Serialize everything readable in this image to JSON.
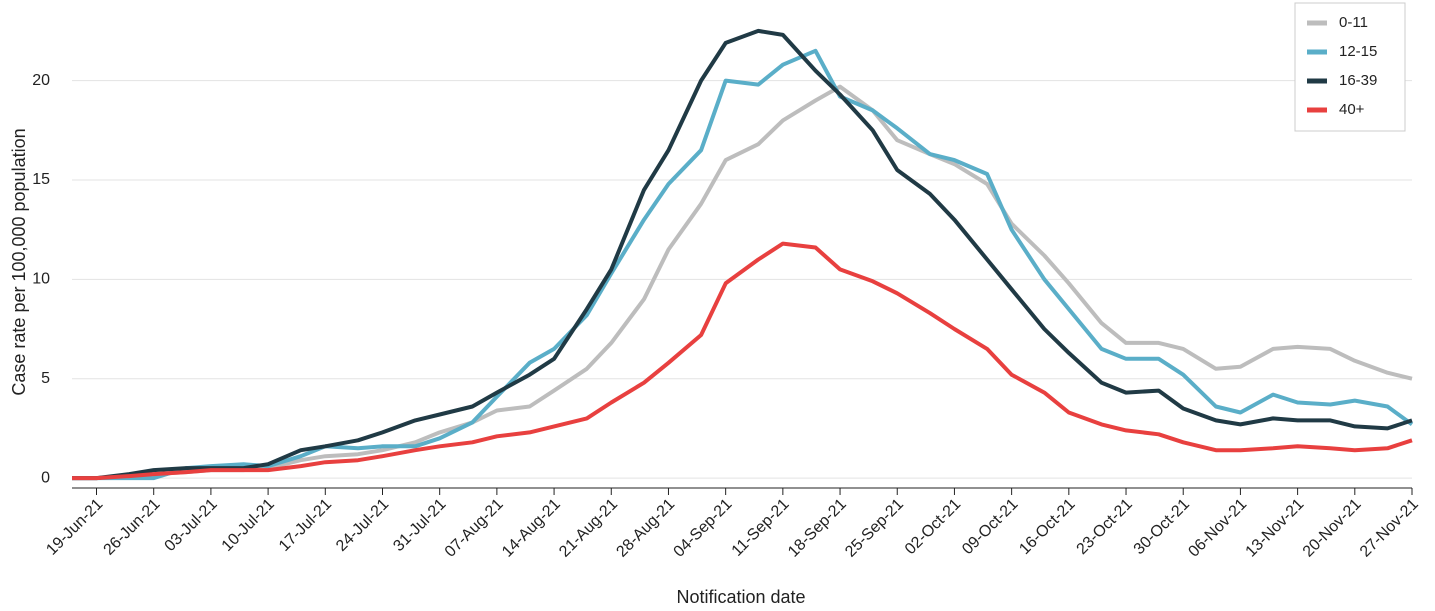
{
  "chart_data": {
    "type": "line",
    "x_label": "Notification date",
    "y_label": "Case rate per 100,000 population",
    "x": [
      "16-Jun-21",
      "19-Jun-21",
      "23-Jun-21",
      "26-Jun-21",
      "30-Jun-21",
      "03-Jul-21",
      "07-Jul-21",
      "10-Jul-21",
      "14-Jul-21",
      "17-Jul-21",
      "21-Jul-21",
      "24-Jul-21",
      "28-Jul-21",
      "31-Jul-21",
      "04-Aug-21",
      "07-Aug-21",
      "11-Aug-21",
      "14-Aug-21",
      "18-Aug-21",
      "21-Aug-21",
      "25-Aug-21",
      "28-Aug-21",
      "01-Sep-21",
      "04-Sep-21",
      "08-Sep-21",
      "11-Sep-21",
      "15-Sep-21",
      "18-Sep-21",
      "22-Sep-21",
      "25-Sep-21",
      "29-Sep-21",
      "02-Oct-21",
      "06-Oct-21",
      "09-Oct-21",
      "13-Oct-21",
      "16-Oct-21",
      "20-Oct-21",
      "23-Oct-21",
      "27-Oct-21",
      "30-Oct-21",
      "03-Nov-21",
      "06-Nov-21",
      "10-Nov-21",
      "13-Nov-21",
      "17-Nov-21",
      "20-Nov-21",
      "24-Nov-21",
      "27-Nov-21"
    ],
    "xlim": [
      "16-Jun-21",
      "27-Nov-21"
    ],
    "xticks": [
      "19-Jun-21",
      "26-Jun-21",
      "03-Jul-21",
      "10-Jul-21",
      "17-Jul-21",
      "24-Jul-21",
      "31-Jul-21",
      "07-Aug-21",
      "14-Aug-21",
      "21-Aug-21",
      "28-Aug-21",
      "04-Sep-21",
      "11-Sep-21",
      "18-Sep-21",
      "25-Sep-21",
      "02-Oct-21",
      "09-Oct-21",
      "16-Oct-21",
      "23-Oct-21",
      "30-Oct-21",
      "06-Nov-21",
      "13-Nov-21",
      "20-Nov-21",
      "27-Nov-21"
    ],
    "ylim": [
      -0.5,
      23
    ],
    "yticks": [
      0,
      5,
      10,
      15,
      20
    ],
    "grid": true,
    "legend": "top-right",
    "series": [
      {
        "name": "0-11",
        "color": "#bdbdbd",
        "values": [
          0,
          0,
          0.1,
          0.2,
          0.3,
          0.4,
          0.4,
          0.5,
          0.9,
          1.1,
          1.2,
          1.4,
          1.8,
          2.3,
          2.8,
          3.4,
          3.6,
          4.4,
          5.5,
          6.8,
          9.0,
          11.5,
          13.8,
          16.0,
          16.8,
          18.0,
          19.0,
          19.7,
          18.5,
          17.0,
          16.3,
          15.8,
          14.8,
          12.8,
          11.2,
          9.8,
          7.8,
          6.8,
          6.8,
          6.5,
          5.5,
          5.6,
          6.5,
          6.6,
          6.5,
          5.9,
          5.3,
          5.0
        ]
      },
      {
        "name": "12-15",
        "color": "#5aaec8",
        "values": [
          0,
          0,
          0,
          0,
          0.5,
          0.6,
          0.7,
          0.6,
          1.1,
          1.6,
          1.5,
          1.6,
          1.6,
          2.0,
          2.8,
          4.1,
          5.8,
          6.5,
          8.2,
          10.3,
          13.0,
          14.8,
          16.5,
          20.0,
          19.8,
          20.8,
          21.5,
          19.2,
          18.5,
          17.6,
          16.3,
          16.0,
          15.3,
          12.5,
          10.0,
          8.5,
          6.5,
          6.0,
          6.0,
          5.2,
          3.6,
          3.3,
          4.2,
          3.8,
          3.7,
          3.9,
          3.6,
          2.7
        ]
      },
      {
        "name": "16-39",
        "color": "#203a45",
        "values": [
          0,
          0,
          0.2,
          0.4,
          0.5,
          0.5,
          0.5,
          0.7,
          1.4,
          1.6,
          1.9,
          2.3,
          2.9,
          3.2,
          3.6,
          4.3,
          5.2,
          6.0,
          8.5,
          10.5,
          14.5,
          16.5,
          20.0,
          21.9,
          22.5,
          22.3,
          20.5,
          19.3,
          17.5,
          15.5,
          14.3,
          13.0,
          11.0,
          9.5,
          7.5,
          6.3,
          4.8,
          4.3,
          4.4,
          3.5,
          2.9,
          2.7,
          3.0,
          2.9,
          2.9,
          2.6,
          2.5,
          2.9
        ]
      },
      {
        "name": "40+",
        "color": "#e8403f",
        "values": [
          0,
          0,
          0.1,
          0.2,
          0.3,
          0.4,
          0.4,
          0.4,
          0.6,
          0.8,
          0.9,
          1.1,
          1.4,
          1.6,
          1.8,
          2.1,
          2.3,
          2.6,
          3.0,
          3.8,
          4.8,
          5.8,
          7.2,
          9.8,
          11.0,
          11.8,
          11.6,
          10.5,
          9.9,
          9.3,
          8.3,
          7.5,
          6.5,
          5.2,
          4.3,
          3.3,
          2.7,
          2.4,
          2.2,
          1.8,
          1.4,
          1.4,
          1.5,
          1.6,
          1.5,
          1.4,
          1.5,
          1.9
        ]
      }
    ]
  }
}
